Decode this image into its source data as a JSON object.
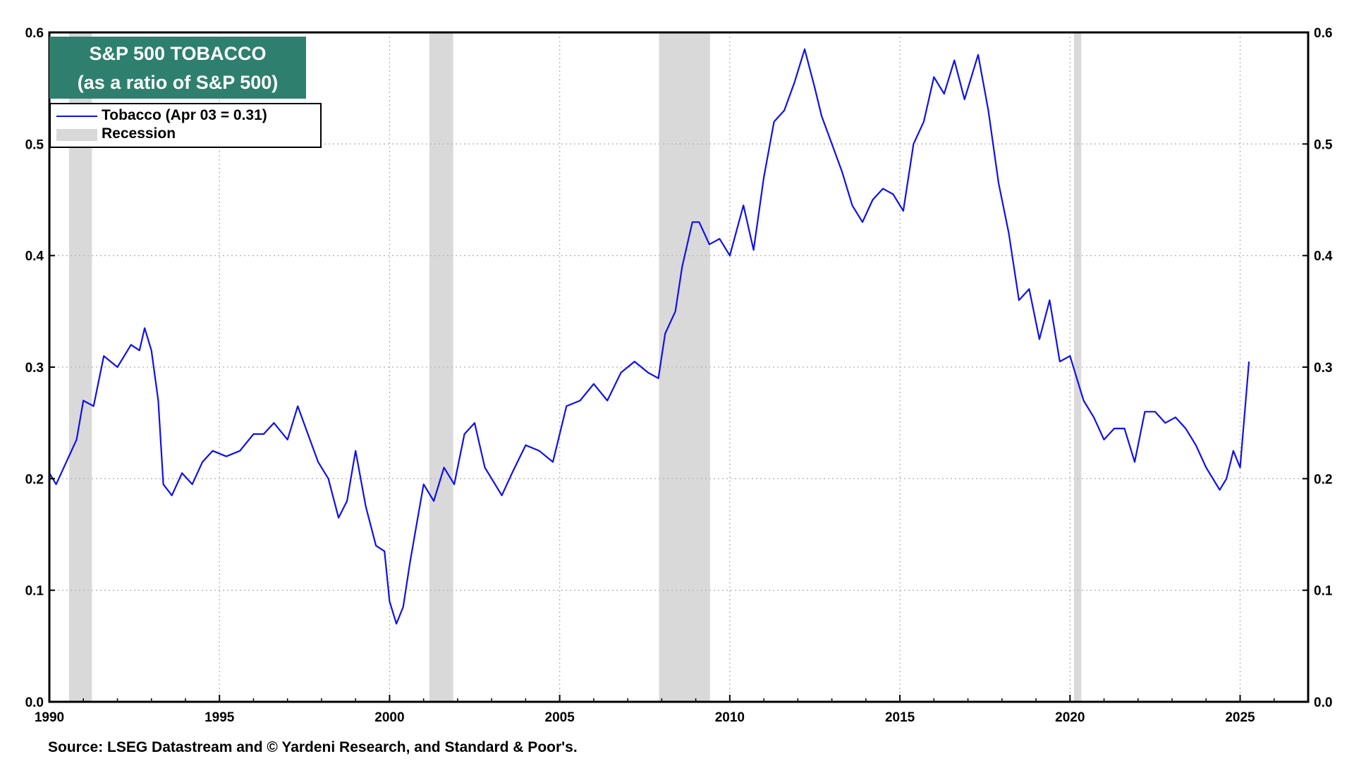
{
  "title_lines": [
    "S&P 500 TOBACCO",
    "(as a ratio of S&P 500)"
  ],
  "legend": {
    "series_label": "Tobacco (Apr 03 = 0.31)",
    "recession_label": "Recession"
  },
  "source": "Source: LSEG Datastream and © Yardeni Research, and Standard & Poor's.",
  "colors": {
    "series": "#1010ee",
    "recession": "#d9d9d9",
    "title_bg": "#2e7f6e"
  },
  "chart_data": {
    "type": "line",
    "title": "S&P 500 TOBACCO (as a ratio of S&P 500)",
    "xlabel": "",
    "ylabel": "",
    "xlim": [
      1990,
      2027
    ],
    "ylim": [
      0,
      0.6
    ],
    "x_ticks": [
      "1990",
      "1995",
      "2000",
      "2005",
      "2010",
      "2015",
      "2020",
      "2025"
    ],
    "y_ticks": [
      "0.0",
      "0.1",
      "0.2",
      "0.3",
      "0.4",
      "0.5",
      "0.6"
    ],
    "grid": true,
    "legend_position": "top-left",
    "recessions": [
      [
        1990.58,
        1991.25
      ],
      [
        2001.17,
        2001.87
      ],
      [
        2007.92,
        2009.42
      ],
      [
        2020.12,
        2020.33
      ]
    ],
    "series": [
      {
        "name": "Tobacco (Apr 03 = 0.31)",
        "x": [
          1990.0,
          1990.2,
          1990.5,
          1990.8,
          1991.0,
          1991.3,
          1991.6,
          1992.0,
          1992.4,
          1992.65,
          1992.8,
          1993.0,
          1993.2,
          1993.35,
          1993.6,
          1993.9,
          1994.2,
          1994.5,
          1994.8,
          1995.2,
          1995.6,
          1996.0,
          1996.3,
          1996.6,
          1997.0,
          1997.3,
          1997.6,
          1997.9,
          1998.2,
          1998.5,
          1998.75,
          1999.0,
          1999.3,
          1999.6,
          1999.85,
          2000.0,
          2000.2,
          2000.4,
          2000.6,
          2000.8,
          2001.0,
          2001.3,
          2001.6,
          2001.9,
          2002.2,
          2002.5,
          2002.8,
          2003.0,
          2003.3,
          2003.6,
          2004.0,
          2004.4,
          2004.8,
          2005.2,
          2005.6,
          2006.0,
          2006.4,
          2006.8,
          2007.2,
          2007.6,
          2007.9,
          2008.1,
          2008.4,
          2008.6,
          2008.9,
          2009.1,
          2009.4,
          2009.7,
          2010.0,
          2010.4,
          2010.7,
          2011.0,
          2011.3,
          2011.6,
          2011.9,
          2012.2,
          2012.5,
          2012.7,
          2013.0,
          2013.3,
          2013.6,
          2013.9,
          2014.2,
          2014.5,
          2014.8,
          2015.1,
          2015.4,
          2015.7,
          2016.0,
          2016.3,
          2016.6,
          2016.9,
          2017.1,
          2017.3,
          2017.6,
          2017.9,
          2018.2,
          2018.5,
          2018.8,
          2019.1,
          2019.4,
          2019.7,
          2020.0,
          2020.2,
          2020.4,
          2020.7,
          2021.0,
          2021.3,
          2021.6,
          2021.9,
          2022.2,
          2022.5,
          2022.8,
          2023.1,
          2023.4,
          2023.7,
          2024.0,
          2024.2,
          2024.4,
          2024.6,
          2024.8,
          2025.0,
          2025.15,
          2025.26
        ],
        "values": [
          0.205,
          0.195,
          0.215,
          0.235,
          0.27,
          0.265,
          0.31,
          0.3,
          0.32,
          0.315,
          0.335,
          0.315,
          0.27,
          0.195,
          0.185,
          0.205,
          0.195,
          0.215,
          0.225,
          0.22,
          0.225,
          0.24,
          0.24,
          0.25,
          0.235,
          0.265,
          0.24,
          0.215,
          0.2,
          0.165,
          0.18,
          0.225,
          0.175,
          0.14,
          0.135,
          0.09,
          0.07,
          0.085,
          0.125,
          0.16,
          0.195,
          0.18,
          0.21,
          0.195,
          0.24,
          0.25,
          0.21,
          0.2,
          0.185,
          0.205,
          0.23,
          0.225,
          0.215,
          0.265,
          0.27,
          0.285,
          0.27,
          0.295,
          0.305,
          0.295,
          0.29,
          0.33,
          0.35,
          0.39,
          0.43,
          0.43,
          0.41,
          0.415,
          0.4,
          0.445,
          0.405,
          0.47,
          0.52,
          0.53,
          0.555,
          0.585,
          0.55,
          0.525,
          0.5,
          0.475,
          0.445,
          0.43,
          0.45,
          0.46,
          0.455,
          0.44,
          0.5,
          0.52,
          0.56,
          0.545,
          0.575,
          0.54,
          0.56,
          0.58,
          0.53,
          0.465,
          0.42,
          0.36,
          0.37,
          0.325,
          0.36,
          0.305,
          0.31,
          0.29,
          0.27,
          0.255,
          0.235,
          0.245,
          0.245,
          0.215,
          0.26,
          0.26,
          0.25,
          0.255,
          0.245,
          0.23,
          0.21,
          0.2,
          0.19,
          0.2,
          0.225,
          0.21,
          0.265,
          0.305
        ]
      }
    ]
  }
}
